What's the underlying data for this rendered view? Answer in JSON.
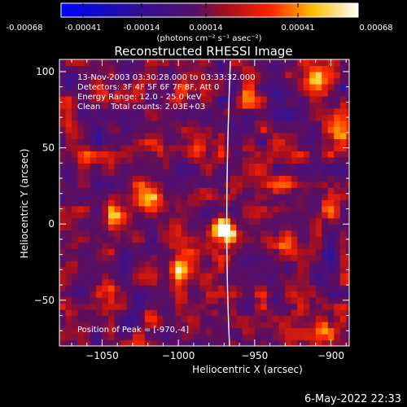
{
  "colorbar": {
    "ticks": [
      "-0.00068",
      "-0.00041",
      "-0.00014",
      "0.00014",
      "0.00041",
      "0.00068"
    ],
    "unit": "(photons cm⁻² s⁻¹ asec⁻²)",
    "min": -0.00068,
    "max": 0.00068
  },
  "chart_data": {
    "type": "heatmap",
    "title": "Reconstructed RHESSI Image",
    "xlabel": "Heliocentric X (arcsec)",
    "ylabel": "Heliocentric Y (arcsec)",
    "xlim": [
      -1078,
      -888
    ],
    "ylim": [
      -80,
      108
    ],
    "xticks": [
      -1050,
      -1000,
      -950,
      -900
    ],
    "yticks": [
      -50,
      0,
      50,
      100
    ],
    "x_tick_labels": [
      "−1050",
      "−1000",
      "−950",
      "−900"
    ],
    "y_tick_labels": [
      "−50",
      "0",
      "50",
      "100"
    ],
    "annotations": [
      "13-Nov-2003 03:30:28.000 to 03:33:32.000",
      "Detectors: 3F 4F 5F 6F 7F 8F, Att 0",
      "Energy Range: 12.0 - 25.0 keV",
      "Clean    Total counts: 2.03E+03"
    ],
    "peak_label": "Position of Peak = [-970,-4]",
    "peak": [
      -970,
      -4
    ],
    "colors": {
      "low": "#0000ff",
      "mid": "#5a0f68",
      "high": "#ffffff"
    }
  },
  "footer": {
    "timestamp": "6-May-2022 22:33"
  }
}
